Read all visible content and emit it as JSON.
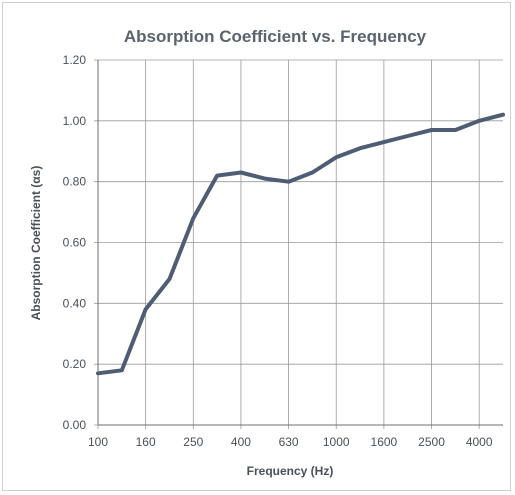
{
  "chart_data": {
    "type": "line",
    "title": "Absorption Coefficient vs. Frequency",
    "xlabel": "Frequency (Hz)",
    "ylabel": "Absorption Coefficient (αs)",
    "x": [
      "100",
      "125",
      "160",
      "200",
      "250",
      "315",
      "400",
      "500",
      "630",
      "800",
      "1000",
      "1250",
      "1600",
      "2000",
      "2500",
      "3150",
      "4000",
      "5000"
    ],
    "x_tick_labels": [
      "100",
      "160",
      "250",
      "400",
      "630",
      "1000",
      "1600",
      "2500",
      "4000"
    ],
    "y_tick_labels": [
      "0.00",
      "0.20",
      "0.40",
      "0.60",
      "0.80",
      "1.00",
      "1.20"
    ],
    "ylim": [
      0,
      1.2
    ],
    "grid": true,
    "series": [
      {
        "values": [
          0.17,
          0.18,
          0.38,
          0.48,
          0.68,
          0.82,
          0.83,
          0.81,
          0.8,
          0.83,
          0.88,
          0.91,
          0.93,
          0.95,
          0.97,
          0.97,
          1.0,
          1.02
        ],
        "color": "#4e5d73"
      }
    ]
  }
}
